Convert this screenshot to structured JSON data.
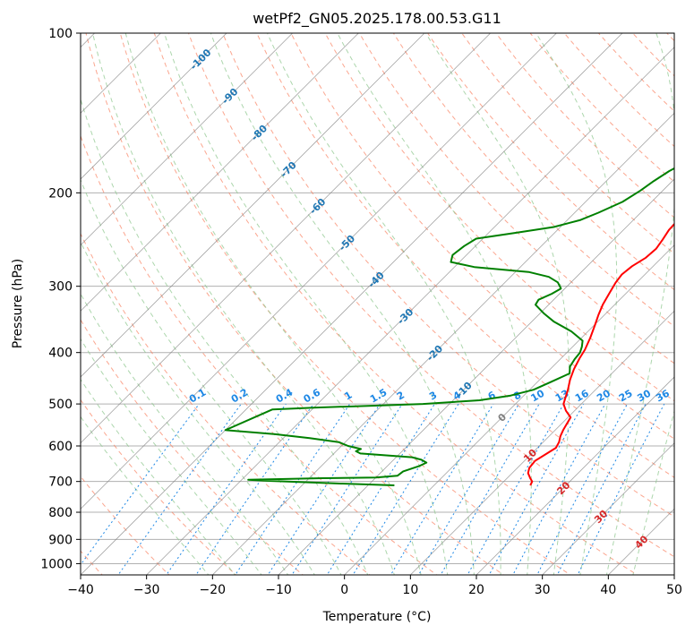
{
  "chart_data": {
    "type": "line",
    "title": "wetPf2_GN05.2025.178.00.53.G11",
    "xlabel": "Temperature (°C)",
    "ylabel": "Pressure (hPa)",
    "xlim": [
      -40,
      50
    ],
    "ylim": [
      1050,
      100
    ],
    "y_scale": "log",
    "grid": true,
    "x_ticks": [
      "−40",
      "−30",
      "−20",
      "−10",
      "0",
      "10",
      "20",
      "30",
      "40",
      "50"
    ],
    "x_tick_values": [
      -40,
      -30,
      -20,
      -10,
      0,
      10,
      20,
      30,
      40,
      50
    ],
    "y_ticks": [
      "100",
      "200",
      "300",
      "400",
      "500",
      "600",
      "700",
      "800",
      "900",
      "1000"
    ],
    "y_tick_values": [
      100,
      200,
      300,
      400,
      500,
      600,
      700,
      800,
      900,
      1000
    ],
    "isotherm_labels": [
      "-100",
      "-90",
      "-80",
      "-70",
      "-60",
      "-50",
      "-40",
      "-30",
      "-20",
      "-10",
      "0",
      "10",
      "20",
      "30",
      "40"
    ],
    "isotherm_values": [
      -100,
      -90,
      -80,
      -70,
      -60,
      -50,
      -40,
      -30,
      -20,
      -10,
      0,
      10,
      20,
      30,
      40
    ],
    "mixing_ratio_labels": [
      "0.1",
      "0.2",
      "0.4",
      "0.6",
      "1",
      "1.5",
      "2",
      "3",
      "4",
      "6",
      "8",
      "10",
      "13",
      "16",
      "20",
      "25",
      "30",
      "36"
    ],
    "mixing_ratio_values": [
      0.1,
      0.2,
      0.4,
      0.6,
      1,
      1.5,
      2,
      3,
      4,
      6,
      8,
      10,
      13,
      16,
      20,
      25,
      30,
      36
    ],
    "series": [
      {
        "color": "#ff0000",
        "points": [
          [
            14.6,
            712
          ],
          [
            14.3,
            700
          ],
          [
            13.5,
            690
          ],
          [
            12.4,
            675
          ],
          [
            11.8,
            660
          ],
          [
            11.6,
            640
          ],
          [
            12.3,
            620
          ],
          [
            12.8,
            605
          ],
          [
            12.4,
            590
          ],
          [
            11.7,
            575
          ],
          [
            11.2,
            560
          ],
          [
            10.8,
            545
          ],
          [
            10.4,
            530
          ],
          [
            8.7,
            515
          ],
          [
            7.3,
            500
          ],
          [
            5.8,
            470
          ],
          [
            4.6,
            450
          ],
          [
            3.6,
            430
          ],
          [
            2.8,
            410
          ],
          [
            2.3,
            395
          ],
          [
            1.3,
            375
          ],
          [
            0.1,
            355
          ],
          [
            -0.9,
            340
          ],
          [
            -1.8,
            325
          ],
          [
            -2.5,
            310
          ],
          [
            -3.2,
            295
          ],
          [
            -3.5,
            285
          ],
          [
            -3.2,
            275
          ],
          [
            -2.4,
            265
          ],
          [
            -2.2,
            255
          ],
          [
            -2.6,
            245
          ],
          [
            -3.1,
            235
          ],
          [
            -3.3,
            220
          ],
          [
            -3.2,
            210
          ],
          [
            -2.8,
            200
          ],
          [
            -1.7,
            190
          ],
          [
            0.0,
            180
          ],
          [
            2.9,
            170
          ],
          [
            6.6,
            160
          ],
          [
            9.5,
            150
          ],
          [
            11.6,
            140
          ],
          [
            13.5,
            130
          ],
          [
            15.8,
            122
          ],
          [
            18.0,
            115
          ],
          [
            19.8,
            110
          ],
          [
            20.8,
            106
          ],
          [
            21.6,
            103
          ],
          [
            22.1,
            100
          ]
        ]
      },
      {
        "color": "#008000",
        "points": [
          [
            -6.0,
            712
          ],
          [
            -15.0,
            706
          ],
          [
            -26.0,
            698
          ],
          [
            -29.0,
            695
          ],
          [
            -18.0,
            690
          ],
          [
            -10.0,
            688
          ],
          [
            -7.0,
            683
          ],
          [
            -6.8,
            670
          ],
          [
            -5.2,
            655
          ],
          [
            -4.6,
            645
          ],
          [
            -5.8,
            637
          ],
          [
            -7.6,
            630
          ],
          [
            -16.0,
            620
          ],
          [
            -17.0,
            614
          ],
          [
            -16.6,
            608
          ],
          [
            -19.0,
            600
          ],
          [
            -21.0,
            590
          ],
          [
            -26.0,
            580
          ],
          [
            -32.0,
            570
          ],
          [
            -40.0,
            560
          ],
          [
            -36.0,
            512
          ],
          [
            -30.0,
            508
          ],
          [
            -22.0,
            504
          ],
          [
            -14.0,
            500
          ],
          [
            -6.0,
            492
          ],
          [
            -2.0,
            482
          ],
          [
            0.6,
            470
          ],
          [
            2.0,
            455
          ],
          [
            3.6,
            438
          ],
          [
            2.6,
            425
          ],
          [
            2.2,
            412
          ],
          [
            2.0,
            400
          ],
          [
            1.4,
            390
          ],
          [
            0.6,
            380
          ],
          [
            -2.5,
            365
          ],
          [
            -6.6,
            350
          ],
          [
            -9.3,
            338
          ],
          [
            -12.0,
            325
          ],
          [
            -12.3,
            318
          ],
          [
            -11.2,
            310
          ],
          [
            -10.6,
            303
          ],
          [
            -12.0,
            295
          ],
          [
            -14.2,
            288
          ],
          [
            -18.0,
            282
          ],
          [
            -27.0,
            276
          ],
          [
            -31.3,
            270
          ],
          [
            -32.1,
            262
          ],
          [
            -31.7,
            252
          ],
          [
            -31.0,
            244
          ],
          [
            -26.0,
            238
          ],
          [
            -21.0,
            232
          ],
          [
            -18.0,
            225
          ],
          [
            -16.4,
            218
          ],
          [
            -14.4,
            208
          ],
          [
            -13.4,
            198
          ],
          [
            -12.8,
            190
          ],
          [
            -12.0,
            182
          ],
          [
            -10.8,
            175
          ],
          [
            -9.6,
            168
          ],
          [
            -8.7,
            160
          ],
          [
            -7.6,
            150
          ],
          [
            -6.8,
            140
          ],
          [
            -6.3,
            132
          ],
          [
            -4.8,
            125
          ],
          [
            -3.2,
            118
          ],
          [
            -1.4,
            112
          ],
          [
            0.3,
            108
          ],
          [
            1.5,
            105
          ],
          [
            2.1,
            102
          ],
          [
            2.2,
            100
          ]
        ]
      }
    ],
    "colors": {
      "temperature": "#ff0000",
      "dewpoint": "#008000",
      "isotherm": "#808080",
      "dry_adiabat": "#fa8060",
      "moist_adiabat": "#90c890",
      "mixing_ratio": "#1e88e5",
      "isotherm_label_cold": "#1f77b4",
      "isotherm_label_warm": "#d62728"
    }
  }
}
